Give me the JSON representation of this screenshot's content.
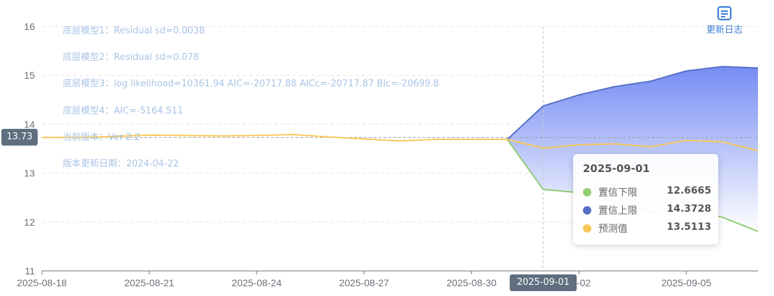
{
  "changelog_button": {
    "label": "更新日志",
    "icon": "changelog-icon"
  },
  "model_info": [
    "底层模型1：Residual sd=0.0038",
    "底层模型2：Residual sd=0.078",
    "底层模型3：log likelihood=10361.94 AIC=-20717.88 AICc=-20717.87 BIc=-20699.8",
    "底层模型4：AIC=-5164.511",
    "当前版本：Ver 2.2",
    "版本更新日期：2024-04-22"
  ],
  "tooltip": {
    "date": "2025-09-01",
    "rows": [
      {
        "name": "置信下限",
        "value": "12.6665",
        "color": "#91cc75"
      },
      {
        "name": "置信上限",
        "value": "14.3728",
        "color": "#5470c6"
      },
      {
        "name": "预测值",
        "value": "13.5113",
        "color": "#fac858"
      }
    ]
  },
  "crosshair": {
    "y_value": "13.73",
    "x_value": "2025-09-01"
  },
  "chart_data": {
    "type": "line",
    "title": "",
    "xlabel": "",
    "ylabel": "",
    "ylim": [
      11,
      16
    ],
    "y_ticks": [
      "11",
      "12",
      "13",
      "14",
      "15",
      "16"
    ],
    "x_ticks": [
      "2025-08-18",
      "2025-08-21",
      "2025-08-24",
      "2025-08-27",
      "2025-08-30",
      "09-02",
      "2025-09-05"
    ],
    "x_start": "2025-08-18",
    "x_end": "2025-09-07",
    "grid": true,
    "legend": "none",
    "history": {
      "color": "#fac858",
      "x": [
        "2025-08-18",
        "2025-08-19",
        "2025-08-20",
        "2025-08-21",
        "2025-08-22",
        "2025-08-23",
        "2025-08-24",
        "2025-08-25",
        "2025-08-26",
        "2025-08-27",
        "2025-08-28",
        "2025-08-29",
        "2025-08-30",
        "2025-08-31"
      ],
      "values": [
        13.73,
        13.73,
        13.75,
        13.78,
        13.77,
        13.76,
        13.77,
        13.79,
        13.74,
        13.7,
        13.66,
        13.69,
        13.69,
        13.69
      ]
    },
    "series": [
      {
        "name": "置信上限",
        "color": "#5470c6",
        "x": [
          "2025-08-31",
          "2025-09-01",
          "2025-09-02",
          "2025-09-03",
          "2025-09-04",
          "2025-09-05",
          "2025-09-06",
          "2025-09-07"
        ],
        "values": [
          13.69,
          14.3728,
          14.6,
          14.77,
          14.88,
          15.09,
          15.18,
          15.15
        ]
      },
      {
        "name": "置信下限",
        "color": "#91cc75",
        "x": [
          "2025-08-31",
          "2025-09-01",
          "2025-09-02",
          "2025-09-03",
          "2025-09-04",
          "2025-09-05",
          "2025-09-06",
          "2025-09-07"
        ],
        "values": [
          13.69,
          12.6665,
          12.6,
          12.42,
          12.2,
          12.24,
          12.1,
          11.81
        ]
      },
      {
        "name": "预测值",
        "color": "#fac858",
        "x": [
          "2025-08-31",
          "2025-09-01",
          "2025-09-02",
          "2025-09-03",
          "2025-09-04",
          "2025-09-05",
          "2025-09-06",
          "2025-09-07"
        ],
        "values": [
          13.69,
          13.5113,
          13.58,
          13.6,
          13.54,
          13.67,
          13.64,
          13.46
        ]
      }
    ]
  }
}
